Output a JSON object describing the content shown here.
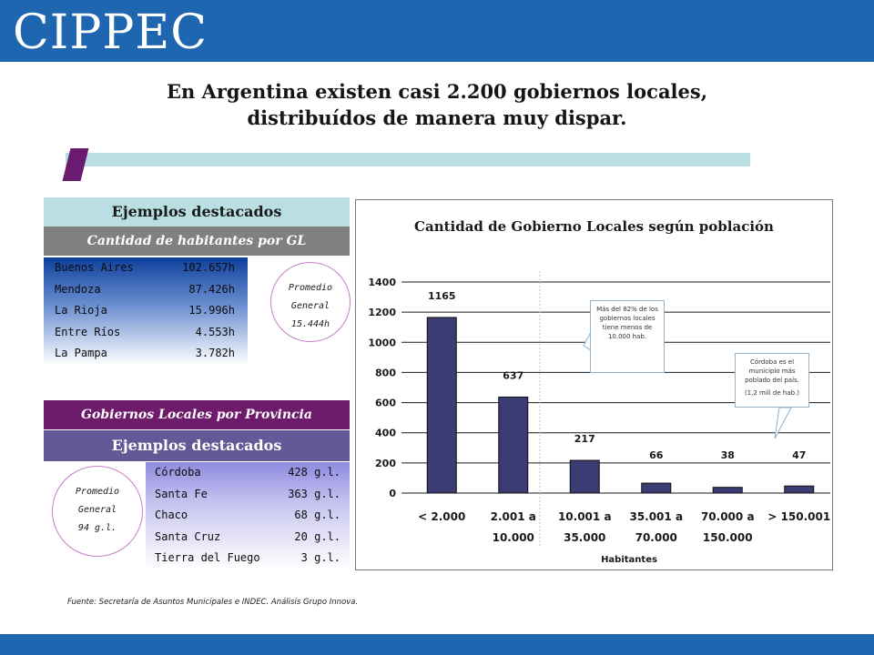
{
  "header": {
    "logo_text": "CIPPEC",
    "brand_color": "#1f66b1"
  },
  "title": {
    "line1": "En Argentina existen casi 2.200 gobiernos locales,",
    "line2": "distribuídos de manera muy dispar."
  },
  "habitantes_panel": {
    "title": "Ejemplos destacados",
    "subtitle": "Cantidad de habitantes por GL",
    "rows": [
      {
        "name": "Buenos Aires",
        "value": "102.657h"
      },
      {
        "name": "Mendoza",
        "value": "87.426h"
      },
      {
        "name": "La Rioja",
        "value": "15.996h"
      },
      {
        "name": "Entre Ríos",
        "value": "4.553h"
      },
      {
        "name": "La Pampa",
        "value": "3.782h"
      }
    ],
    "average": {
      "line1": "Promedio",
      "line2": "General",
      "value": "15.444h"
    }
  },
  "provincia_panel": {
    "title": "Gobiernos Locales por Provincia",
    "subtitle": "Ejemplos destacados",
    "rows": [
      {
        "name": "Córdoba",
        "value": "428 g.l."
      },
      {
        "name": "Santa Fe",
        "value": "363 g.l."
      },
      {
        "name": "Chaco",
        "value": "68 g.l."
      },
      {
        "name": "Santa Cruz",
        "value": "20 g.l."
      },
      {
        "name": "Tierra del Fuego",
        "value": "3 g.l."
      }
    ],
    "average": {
      "line1": "Promedio",
      "line2": "General",
      "value": "94 g.l."
    }
  },
  "source": "Fuente: Secretaría de Asuntos Municipales e INDEC. Análisis Grupo Innova.",
  "callouts": {
    "c1": "Más del 82% de los gobiernos locales tiene menos de 10.000 hab.",
    "c2_line1": "Córdoba es el municipio más poblado del país.",
    "c2_line2": "(1,2 mill de hab.)"
  },
  "chart_data": {
    "type": "bar",
    "title": "Cantidad de Gobierno Locales según población",
    "xlabel": "Habitantes",
    "ylabel": "",
    "ylim": [
      0,
      1400
    ],
    "yticks": [
      "0",
      "200",
      "400",
      "600",
      "800",
      "1000",
      "1200",
      "1400"
    ],
    "ytick_values": [
      0,
      200,
      400,
      600,
      800,
      1000,
      1200,
      1400
    ],
    "categories": [
      {
        "line1": "< 2.000",
        "line2": ""
      },
      {
        "line1": "2.001 a",
        "line2": "10.000"
      },
      {
        "line1": "10.001 a",
        "line2": "35.000"
      },
      {
        "line1": "35.001 a",
        "line2": "70.000"
      },
      {
        "line1": "70.000 a",
        "line2": "150.000"
      },
      {
        "line1": "> 150.001",
        "line2": ""
      }
    ],
    "values": [
      1165,
      637,
      217,
      66,
      38,
      47
    ],
    "data_labels": [
      "1165",
      "637",
      "217",
      "66",
      "38",
      "47"
    ],
    "bar_color": "#3b3c73",
    "grid": true
  }
}
